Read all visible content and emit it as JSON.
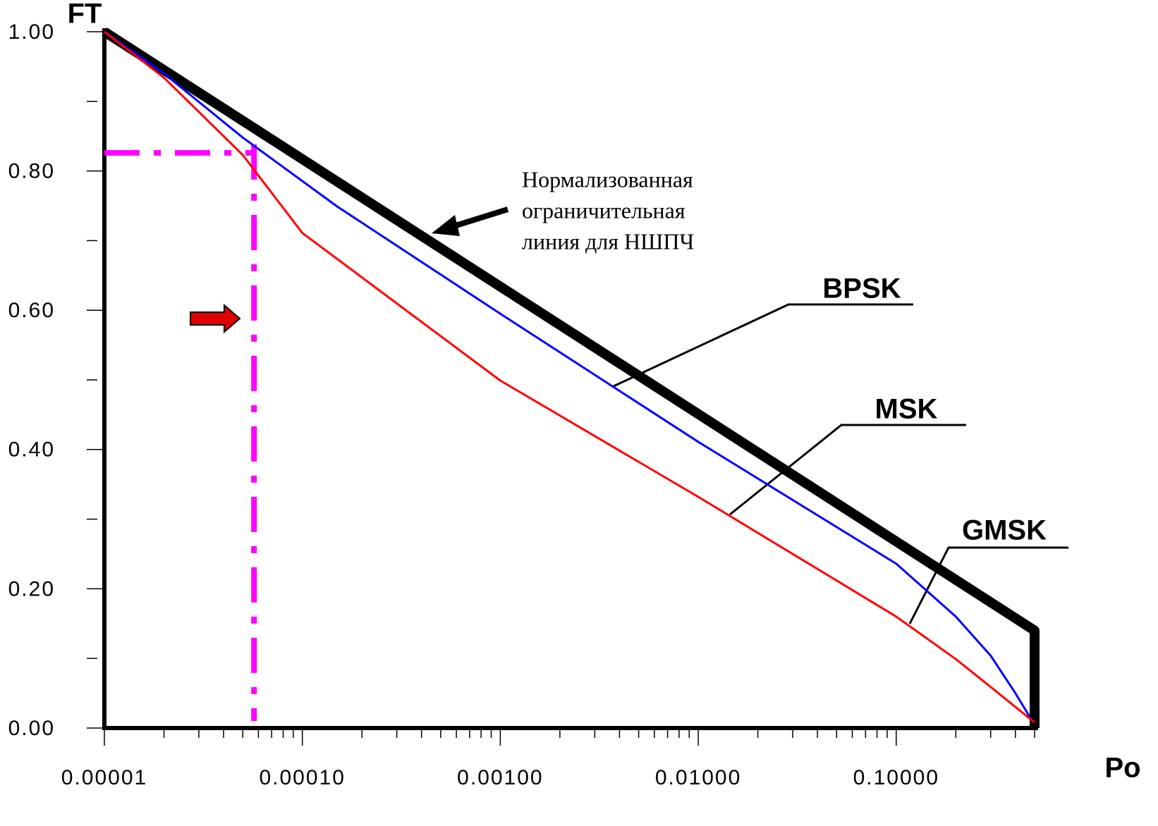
{
  "chart_data": {
    "type": "line",
    "y_axis_title": "FT",
    "x_axis_title": "Po",
    "log_x": true,
    "xlim": [
      1e-05,
      0.5
    ],
    "ylim": [
      0,
      1
    ],
    "xticks": [
      {
        "value": 1e-05,
        "label": "0.00001"
      },
      {
        "value": 0.0001,
        "label": "0.00010"
      },
      {
        "value": 0.001,
        "label": "0.00100"
      },
      {
        "value": 0.01,
        "label": "0.01000"
      },
      {
        "value": 0.1,
        "label": "0.10000"
      }
    ],
    "minor_xticks": [
      2e-05,
      3e-05,
      4e-05,
      5e-05,
      6e-05,
      7e-05,
      8e-05,
      9e-05,
      0.0002,
      0.0003,
      0.0004,
      0.0005,
      0.0006,
      0.0007,
      0.0008,
      0.0009,
      0.002,
      0.003,
      0.004,
      0.005,
      0.006,
      0.007,
      0.008,
      0.009,
      0.02,
      0.03,
      0.04,
      0.05,
      0.06,
      0.07,
      0.08,
      0.09,
      0.2,
      0.3,
      0.4,
      0.5
    ],
    "yticks": [
      {
        "value": 0,
        "label": "0.00"
      },
      {
        "value": 0.2,
        "label": "0.20"
      },
      {
        "value": 0.4,
        "label": "0.40"
      },
      {
        "value": 0.6,
        "label": "0.60"
      },
      {
        "value": 0.8,
        "label": "0.80"
      },
      {
        "value": 1,
        "label": "1.00"
      }
    ],
    "minor_yticks": [
      0.1,
      0.3,
      0.5,
      0.7,
      0.9
    ],
    "series": [
      {
        "color": "#000000",
        "width": 14,
        "x": [
          1e-05,
          0.5,
          0.5
        ],
        "values": [
          1.0,
          0.14,
          0.0
        ]
      },
      {
        "color": "#0000ff",
        "width": 3,
        "x": [
          1e-05,
          2e-05,
          5e-05,
          0.00015,
          0.001,
          0.01,
          0.1,
          0.2,
          0.3,
          0.4,
          0.48
        ],
        "values": [
          1.0,
          0.94,
          0.848,
          0.749,
          0.595,
          0.411,
          0.236,
          0.16,
          0.104,
          0.05,
          0.013
        ]
      },
      {
        "color": "#ff0000",
        "width": 3,
        "x": [
          1e-05,
          2e-05,
          5e-05,
          0.0001,
          0.001,
          0.01,
          0.1,
          0.2,
          0.3,
          0.5
        ],
        "values": [
          1.0,
          0.934,
          0.823,
          0.711,
          0.499,
          0.332,
          0.16,
          0.099,
          0.059,
          0.008
        ]
      }
    ],
    "reference": {
      "x": 5.7e-05,
      "y": 0.826,
      "color": "#ff00ff"
    },
    "annotations": [
      "BPSK",
      "MSK",
      "GMSK"
    ],
    "note": [
      "Нормализованная",
      "ограничительная",
      "линия для НШПЧ"
    ]
  }
}
